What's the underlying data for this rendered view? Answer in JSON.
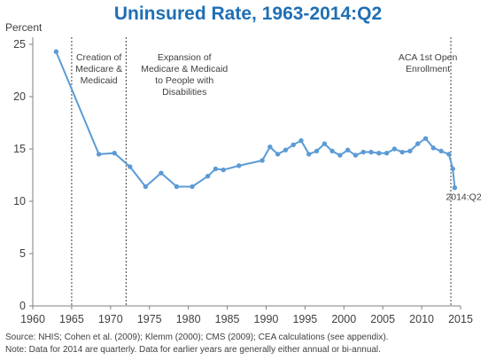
{
  "chart_data": {
    "type": "line",
    "title": "Uninsured Rate, 1963-2014:Q2",
    "ylabel": "Percent",
    "xlabel": "",
    "xlim": [
      1960,
      2015
    ],
    "ylim": [
      0,
      25
    ],
    "x_ticks": [
      1960,
      1965,
      1970,
      1975,
      1980,
      1985,
      1990,
      1995,
      2000,
      2005,
      2010,
      2015
    ],
    "y_ticks": [
      0,
      5,
      10,
      15,
      20,
      25
    ],
    "grid": false,
    "color": "#5b9bd5",
    "series": [
      {
        "x": [
          1963,
          1968.5,
          1970.5,
          1972.5,
          1974.5,
          1976.5,
          1978.5,
          1980.5,
          1982.5,
          1983.5,
          1984.5,
          1986.5,
          1989.5,
          1990.5,
          1991.5,
          1992.5,
          1993.5,
          1994.5,
          1995.5,
          1996.5,
          1997.5,
          1998.5,
          1999.5,
          2000.5,
          2001.5,
          2002.5,
          2003.5,
          2004.5,
          2005.5,
          2006.5,
          2007.5,
          2008.5,
          2009.5,
          2010.5,
          2011.5,
          2012.5,
          2013.5,
          2014.0,
          2014.25
        ],
        "y": [
          24.3,
          14.5,
          14.6,
          13.3,
          11.4,
          12.7,
          11.4,
          11.4,
          12.4,
          13.1,
          13.0,
          13.4,
          13.9,
          15.2,
          14.5,
          14.9,
          15.4,
          15.8,
          14.5,
          14.8,
          15.5,
          14.8,
          14.4,
          14.9,
          14.4,
          14.7,
          14.7,
          14.6,
          14.6,
          15.0,
          14.7,
          14.8,
          15.5,
          16.0,
          15.1,
          14.8,
          14.5,
          13.1,
          11.3
        ]
      }
    ],
    "vlines": [
      1965,
      1972,
      2013.75
    ],
    "annotations": [
      {
        "x": 1968.5,
        "lines": [
          "Creation of",
          "Medicare &",
          "Medicaid"
        ]
      },
      {
        "x": 1979.5,
        "lines": [
          "Expansion of",
          "Medicare & Medicaid",
          "to People with",
          "Disabilities"
        ]
      },
      {
        "x": 2010.8,
        "lines": [
          "ACA 1st Open",
          "Enrollment"
        ]
      }
    ],
    "end_label": "2014:Q2"
  },
  "footnotes": {
    "source": "Source: NHIS; Cohen et al. (2009); Klemm (2000); CMS (2009); CEA calculations (see appendix).",
    "note": "Note: Data for 2014 are quarterly.  Data for earlier years are generally either annual or bi-annual."
  }
}
